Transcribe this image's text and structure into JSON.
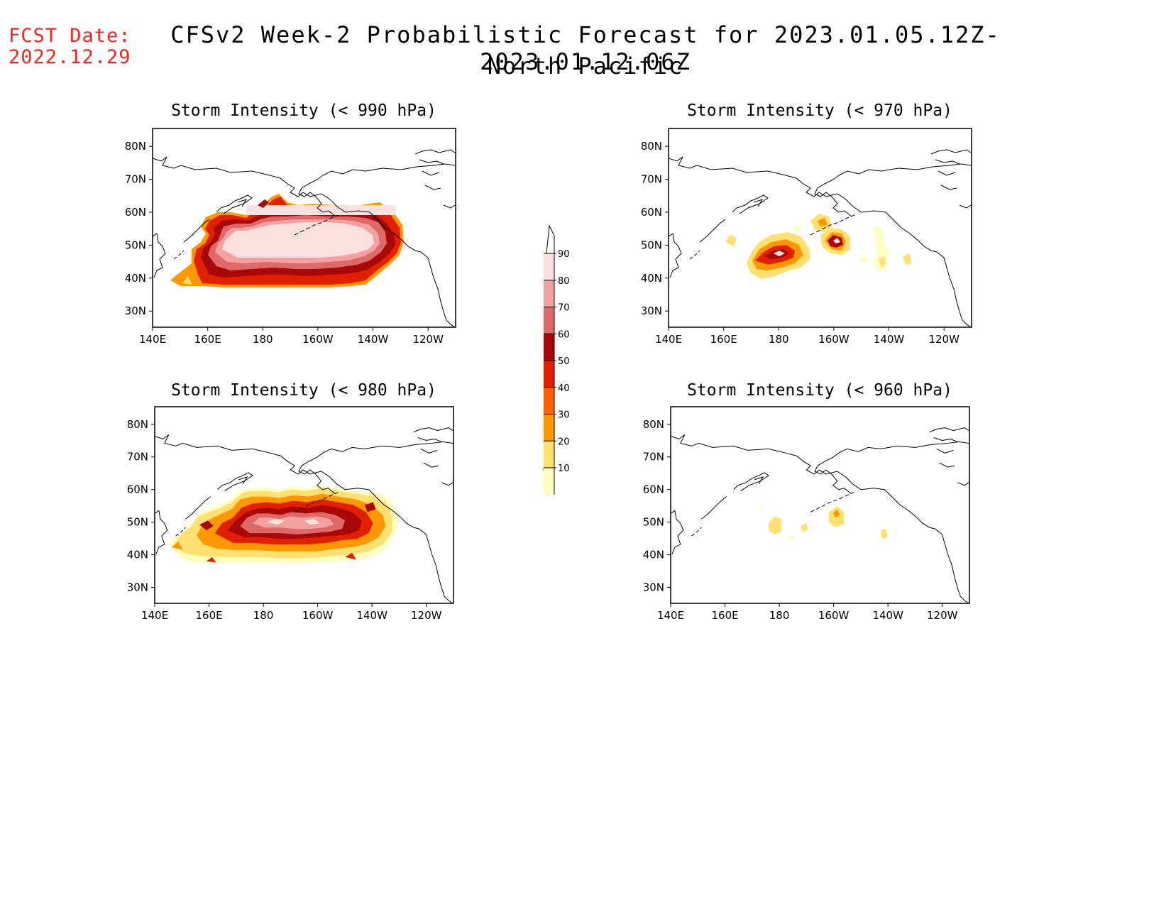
{
  "fcst_date": {
    "label": "FCST Date:",
    "value": "2022.12.29"
  },
  "title": {
    "line1": "CFSv2 Week-2 Probabilistic Forecast for 2023.01.05.12Z-2023.01.12.06Z",
    "line2": "North Pacific"
  },
  "axes": {
    "lon_labels": [
      "140E",
      "160E",
      "180",
      "160W",
      "140W",
      "120W"
    ],
    "lat_labels": [
      "80N",
      "70N",
      "60N",
      "50N",
      "40N",
      "30N"
    ]
  },
  "colorbar": {
    "labels": [
      "90",
      "80",
      "70",
      "60",
      "50",
      "40",
      "30",
      "20",
      "10"
    ],
    "colors": [
      "#fbe0e0",
      "#f3a0a0",
      "#df6868",
      "#a80808",
      "#e02000",
      "#ff6000",
      "#ff9800",
      "#ffe070",
      "#ffffc0"
    ]
  },
  "panels": [
    {
      "id": "p990",
      "title": "Storm Intensity (< 990 hPa)"
    },
    {
      "id": "p970",
      "title": "Storm Intensity (< 970 hPa)"
    },
    {
      "id": "p980",
      "title": "Storm Intensity (< 980 hPa)"
    },
    {
      "id": "p960",
      "title": "Storm Intensity (< 960 hPa)"
    }
  ]
}
